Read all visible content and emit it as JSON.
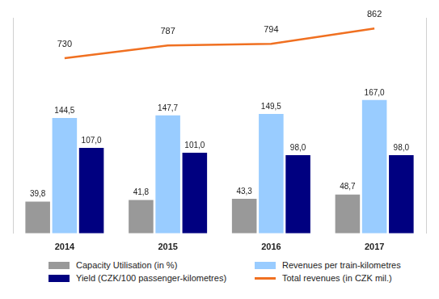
{
  "chart_data": {
    "type": "bar",
    "categories": [
      "2014",
      "2015",
      "2016",
      "2017"
    ],
    "series": [
      {
        "name": "Capacity Utilisation (in %)",
        "color": "#999999",
        "values": [
          39.8,
          41.8,
          43.3,
          48.7
        ],
        "value_labels": [
          "39,8",
          "41,8",
          "43,3",
          "48,7"
        ]
      },
      {
        "name": "Revenues per train-kilometres",
        "color": "#99ccff",
        "values": [
          144.5,
          147.7,
          149.5,
          167
        ],
        "value_labels": [
          "144,5",
          "147,7",
          "149,5",
          "167,0"
        ]
      },
      {
        "name": "Yield (CZK/100 passenger-kilometres)",
        "color": "#000080",
        "values": [
          107,
          101,
          98,
          98
        ],
        "value_labels": [
          "107,0",
          "101,0",
          "98,0",
          "98,0"
        ]
      },
      {
        "name": "Total revenues (in CZK mil.)",
        "type": "line",
        "axis": "y2",
        "color": "#f07021",
        "marker": "none",
        "line_style": "solid",
        "values": [
          730,
          787,
          794,
          862
        ]
      }
    ],
    "ylim": [
      0,
      270
    ],
    "y2lim": [
      -50,
      910
    ],
    "tick_labels": "x",
    "grid": false,
    "legend": "bottom",
    "data_labels": true
  }
}
